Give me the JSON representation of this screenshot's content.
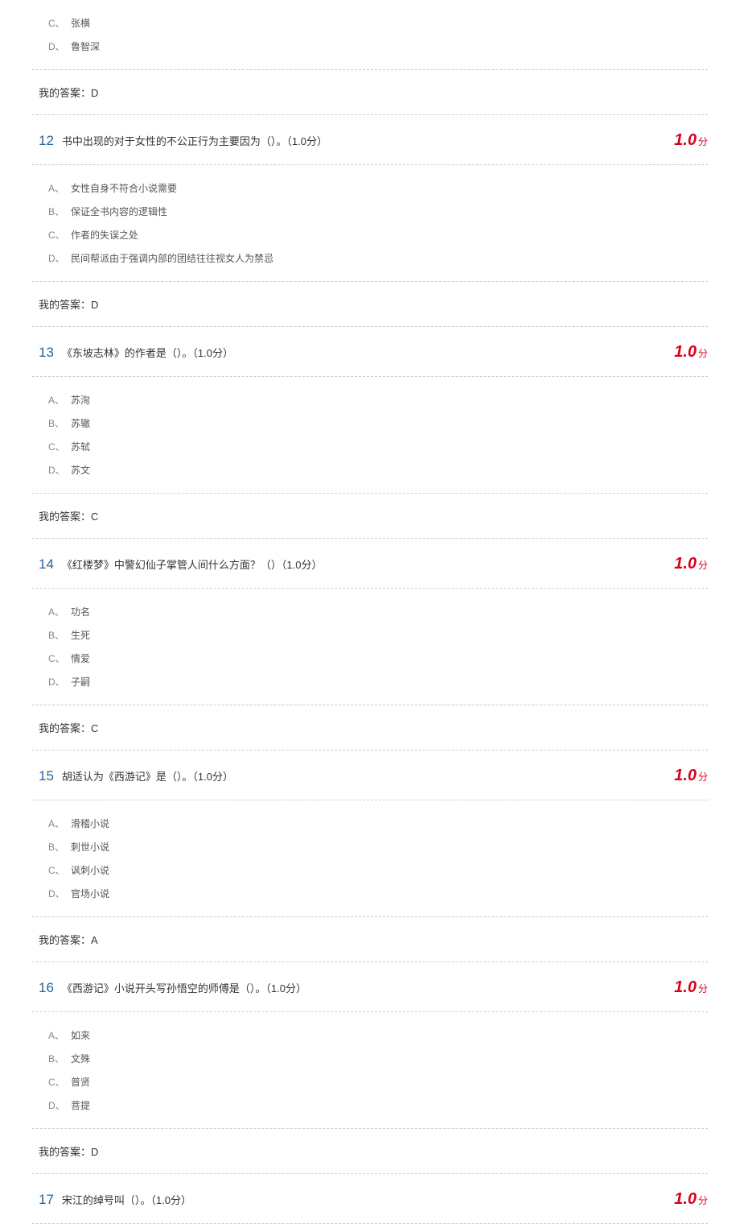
{
  "answer_label": "我的答案：",
  "score_unit": "分",
  "initial_options": [
    {
      "letter": "C、",
      "text": "张横"
    },
    {
      "letter": "D、",
      "text": "鲁智深"
    }
  ],
  "initial_answer": "D",
  "questions": [
    {
      "num": "12",
      "text": "书中出现的对于女性的不公正行为主要因为（）。（1.0分）",
      "score": "1.0",
      "options": [
        {
          "letter": "A、",
          "text": "女性自身不符合小说需要"
        },
        {
          "letter": "B、",
          "text": "保证全书内容的逻辑性"
        },
        {
          "letter": "C、",
          "text": "作者的失误之处"
        },
        {
          "letter": "D、",
          "text": "民间帮派由于强调内部的团结往往视女人为禁忌"
        }
      ],
      "answer": "D"
    },
    {
      "num": "13",
      "text": "《东坡志林》的作者是（）。（1.0分）",
      "score": "1.0",
      "options": [
        {
          "letter": "A、",
          "text": "苏洵"
        },
        {
          "letter": "B、",
          "text": "苏辙"
        },
        {
          "letter": "C、",
          "text": "苏轼"
        },
        {
          "letter": "D、",
          "text": "苏文"
        }
      ],
      "answer": "C"
    },
    {
      "num": "14",
      "text": "《红楼梦》中警幻仙子掌管人间什么方面？（）（1.0分）",
      "score": "1.0",
      "options": [
        {
          "letter": "A、",
          "text": "功名"
        },
        {
          "letter": "B、",
          "text": "生死"
        },
        {
          "letter": "C、",
          "text": "情爱"
        },
        {
          "letter": "D、",
          "text": "子嗣"
        }
      ],
      "answer": "C"
    },
    {
      "num": "15",
      "text": "胡适认为《西游记》是（）。（1.0分）",
      "score": "1.0",
      "options": [
        {
          "letter": "A、",
          "text": "滑稽小说"
        },
        {
          "letter": "B、",
          "text": "刺世小说"
        },
        {
          "letter": "C、",
          "text": "讽刺小说"
        },
        {
          "letter": "D、",
          "text": "官场小说"
        }
      ],
      "answer": "A"
    },
    {
      "num": "16",
      "text": "《西游记》小说开头写孙悟空的师傅是（）。（1.0分）",
      "score": "1.0",
      "options": [
        {
          "letter": "A、",
          "text": "如来"
        },
        {
          "letter": "B、",
          "text": "文殊"
        },
        {
          "letter": "C、",
          "text": "普贤"
        },
        {
          "letter": "D、",
          "text": "菩提"
        }
      ],
      "answer": "D"
    },
    {
      "num": "17",
      "text": "宋江的绰号叫（）。（1.0分）",
      "score": "1.0",
      "options": [],
      "answer": null
    }
  ]
}
